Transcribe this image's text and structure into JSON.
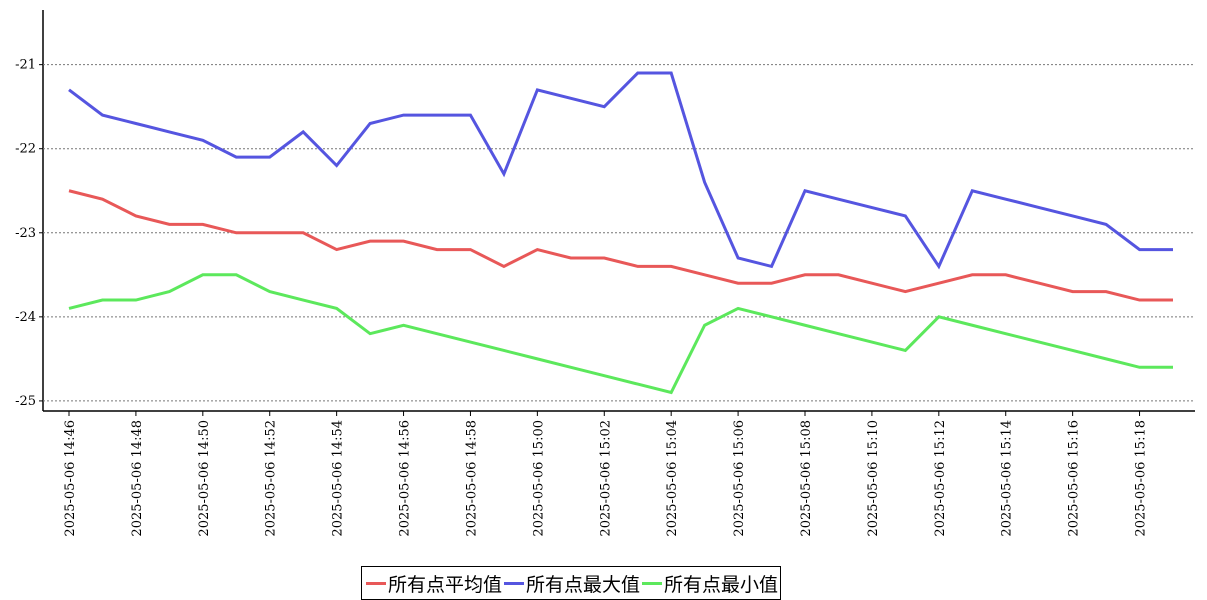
{
  "chart_data": {
    "type": "line",
    "categories": [
      "2025-05-06 14:46",
      null,
      "2025-05-06 14:48",
      null,
      "2025-05-06 14:50",
      null,
      "2025-05-06 14:52",
      null,
      "2025-05-06 14:54",
      null,
      "2025-05-06 14:56",
      null,
      "2025-05-06 14:58",
      null,
      "2025-05-06 15:00",
      null,
      "2025-05-06 15:02",
      null,
      "2025-05-06 15:04",
      null,
      "2025-05-06 15:06",
      null,
      "2025-05-06 15:08",
      null,
      "2025-05-06 15:10",
      null,
      "2025-05-06 15:12",
      null,
      "2025-05-06 15:14",
      null,
      "2025-05-06 15:16",
      null,
      "2025-05-06 15:18",
      null
    ],
    "series": [
      {
        "name": "所有点平均值",
        "color": "#e85858",
        "values": [
          -22.5,
          -22.6,
          -22.8,
          -22.9,
          -22.9,
          -23.0,
          -23.0,
          -23.0,
          -23.2,
          -23.1,
          -23.1,
          -23.2,
          -23.2,
          -23.4,
          -23.2,
          -23.3,
          -23.3,
          -23.4,
          -23.4,
          -23.5,
          -23.6,
          -23.6,
          -23.5,
          -23.5,
          -23.6,
          -23.7,
          -23.6,
          -23.5,
          -23.5,
          -23.6,
          -23.7,
          -23.7,
          -23.8,
          -23.8
        ]
      },
      {
        "name": "所有点最大值",
        "color": "#5555e0",
        "values": [
          -21.3,
          -21.6,
          -21.7,
          -21.8,
          -21.9,
          -22.1,
          -22.1,
          -21.8,
          -22.2,
          -21.7,
          -21.6,
          -21.6,
          -21.6,
          -22.3,
          -21.3,
          -21.4,
          -21.5,
          -21.1,
          -21.1,
          -22.4,
          -23.3,
          -23.4,
          -22.5,
          -22.6,
          -22.7,
          -22.8,
          -23.4,
          -22.5,
          -22.6,
          -22.7,
          -22.8,
          -22.9,
          -23.2,
          -23.2
        ]
      },
      {
        "name": "所有点最小值",
        "color": "#5ce85c",
        "values": [
          -23.9,
          -23.8,
          -23.8,
          -23.7,
          -23.5,
          -23.5,
          -23.7,
          -23.8,
          -23.9,
          -24.2,
          -24.1,
          -24.2,
          -24.3,
          -24.4,
          -24.5,
          -24.6,
          -24.7,
          -24.8,
          -24.9,
          -24.1,
          -23.9,
          -24.0,
          -24.1,
          -24.2,
          -24.3,
          -24.4,
          -24.0,
          -24.1,
          -24.2,
          -24.3,
          -24.4,
          -24.5,
          -24.6,
          -24.6
        ]
      }
    ],
    "ylim": [
      -25.12,
      -20.35
    ],
    "yticks": [
      -25,
      -24,
      -23,
      -22,
      -21
    ],
    "grid": true
  }
}
